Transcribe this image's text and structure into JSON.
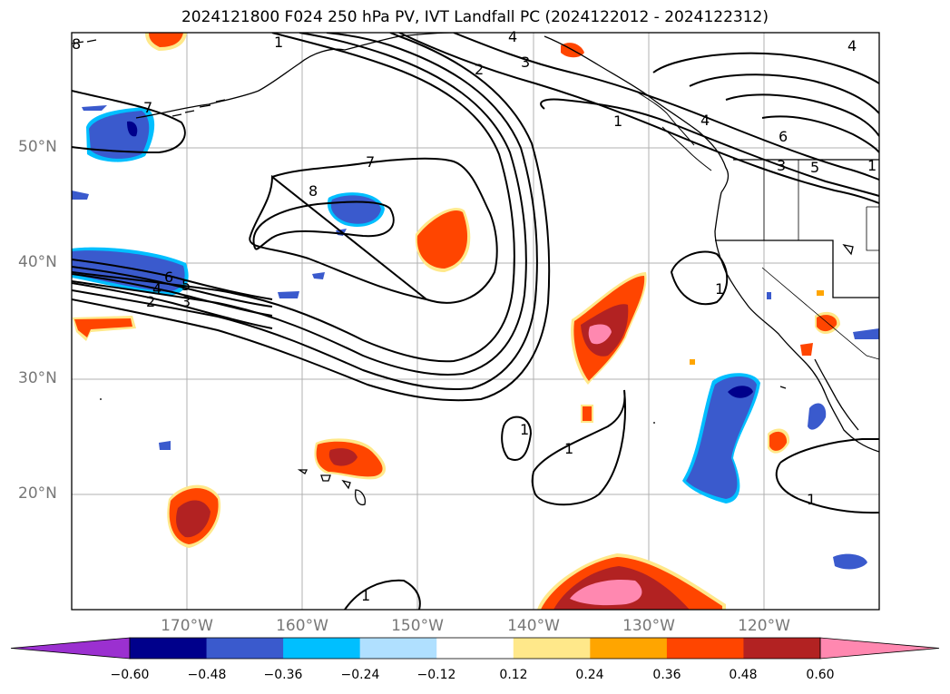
{
  "title": "2024121800 F024 250 hPa PV, IVT Landfall PC (2024122012 - 2024122312)",
  "map": {
    "lat_labels": [
      "50°N",
      "40°N",
      "30°N",
      "20°N"
    ],
    "lon_labels": [
      "170°W",
      "160°W",
      "150°W",
      "140°W",
      "130°W",
      "120°W"
    ],
    "contour_labels": [
      "8",
      "1",
      "4",
      "2",
      "3",
      "4",
      "7",
      "1",
      "4",
      "6",
      "3",
      "5",
      "1",
      "7",
      "8",
      "6",
      "5",
      "4",
      "3",
      "2",
      "1",
      "1",
      "1",
      "1",
      "1"
    ]
  },
  "colorbar": {
    "ticks": [
      "−0.60",
      "−0.48",
      "−0.36",
      "−0.24",
      "−0.12",
      "0.12",
      "0.24",
      "0.36",
      "0.48",
      "0.60"
    ],
    "colors": [
      "#9b30d0",
      "#00008b",
      "#3a5acd",
      "#00bfff",
      "#b0e0ff",
      "#ffffff",
      "#ffe88a",
      "#ffa500",
      "#ff4500",
      "#b22222",
      "#ff88b0"
    ]
  }
}
